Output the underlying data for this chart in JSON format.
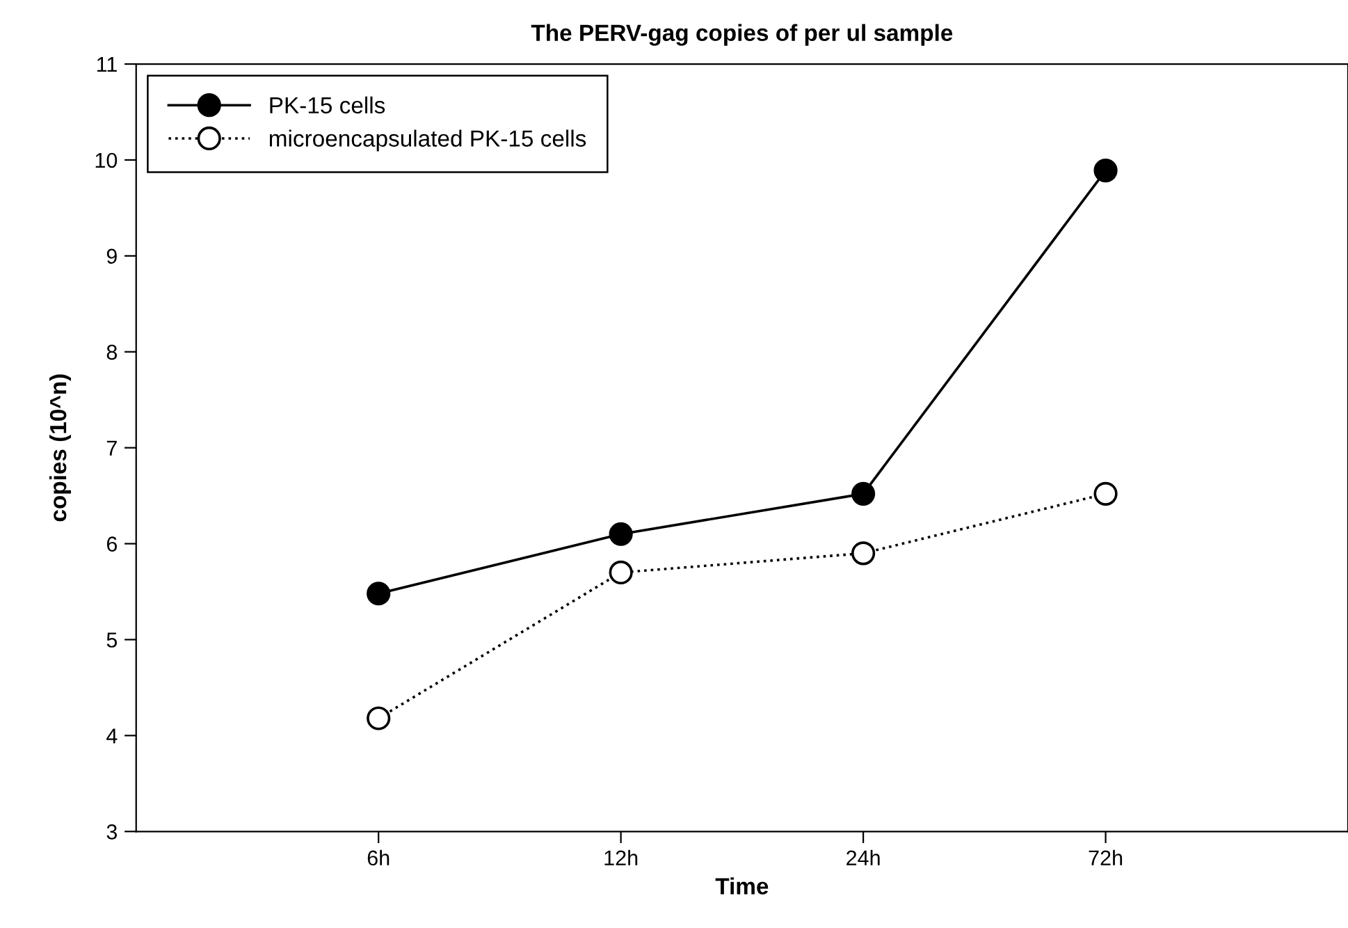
{
  "chart_data": {
    "type": "line",
    "title": "The PERV-gag copies of per ul sample",
    "xlabel": "Time",
    "ylabel": "copies (10^n)",
    "categories": [
      "6h",
      "12h",
      "24h",
      "72h"
    ],
    "series": [
      {
        "name": "PK-15 cells",
        "color": "#000000",
        "values": [
          5.48,
          6.1,
          6.52,
          9.89
        ],
        "marker": "circle",
        "line_style": "solid"
      },
      {
        "name": "microencapsulated PK-15 cells",
        "color": "#000000",
        "values": [
          4.18,
          5.7,
          5.9,
          6.52
        ],
        "marker": "circle",
        "line_style": "dotted"
      }
    ],
    "ylim": [
      3,
      11
    ],
    "yticks": [
      3,
      4,
      5,
      6,
      7,
      8,
      9,
      10,
      11
    ],
    "grid": false,
    "legend": "top left"
  }
}
